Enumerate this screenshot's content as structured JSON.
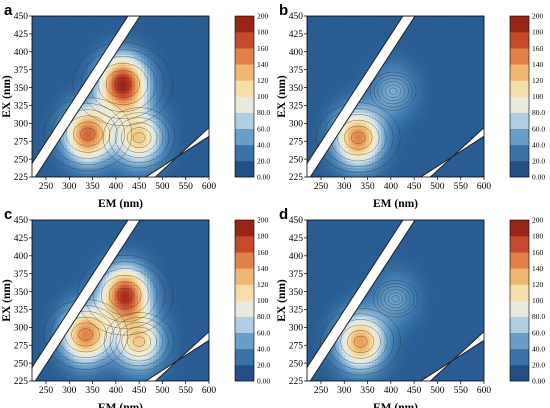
{
  "figure": {
    "panels": [
      "a",
      "b",
      "c",
      "d"
    ]
  },
  "chart_data": [
    {
      "panel": "a",
      "type": "heatmap",
      "xlabel": "EM (nm)",
      "ylabel": "EX (nm)",
      "xlim": [
        220,
        600
      ],
      "ylim": [
        225,
        450
      ],
      "xticks": [
        "250",
        "300",
        "350",
        "400",
        "450",
        "500",
        "550",
        "600"
      ],
      "yticks": [
        "225",
        "250",
        "275",
        "300",
        "325",
        "350",
        "375",
        "400",
        "425",
        "450"
      ],
      "colorbar": {
        "range": [
          0,
          200
        ],
        "labels": [
          "0.00",
          "20.0",
          "40.0",
          "60.0",
          "80.0",
          "100",
          "120",
          "140",
          "160",
          "180",
          "200"
        ]
      },
      "peaks": [
        {
          "em": 415,
          "ex": 355,
          "intensity": 190
        },
        {
          "em": 340,
          "ex": 285,
          "intensity": 160
        },
        {
          "em": 450,
          "ex": 280,
          "intensity": 120
        }
      ],
      "gridlines": false
    },
    {
      "panel": "b",
      "type": "heatmap",
      "xlabel": "EM (nm)",
      "ylabel": "EX (nm)",
      "xlim": [
        220,
        600
      ],
      "ylim": [
        225,
        450
      ],
      "xticks": [
        "250",
        "300",
        "350",
        "400",
        "450",
        "500",
        "550",
        "600"
      ],
      "yticks": [
        "225",
        "250",
        "275",
        "300",
        "325",
        "350",
        "375",
        "400",
        "425",
        "450"
      ],
      "colorbar": {
        "range": [
          0,
          200
        ],
        "labels": [
          "0.00",
          "20.0",
          "40.0",
          "60.0",
          "80.0",
          "100",
          "120",
          "140",
          "160",
          "180",
          "200"
        ]
      },
      "peaks": [
        {
          "em": 330,
          "ex": 280,
          "intensity": 150
        },
        {
          "em": 405,
          "ex": 345,
          "intensity": 55
        }
      ],
      "gridlines": false
    },
    {
      "panel": "c",
      "type": "heatmap",
      "xlabel": "EM (nm)",
      "ylabel": "EX (nm)",
      "xlim": [
        220,
        600
      ],
      "ylim": [
        225,
        450
      ],
      "xticks": [
        "250",
        "300",
        "350",
        "400",
        "450",
        "500",
        "550",
        "600"
      ],
      "yticks": [
        "225",
        "250",
        "275",
        "300",
        "325",
        "350",
        "375",
        "400",
        "425",
        "450"
      ],
      "colorbar": {
        "range": [
          0,
          200
        ],
        "labels": [
          "0.00",
          "20.0",
          "40.0",
          "60.0",
          "80.0",
          "100",
          "120",
          "140",
          "160",
          "180",
          "200"
        ]
      },
      "peaks": [
        {
          "em": 420,
          "ex": 345,
          "intensity": 180
        },
        {
          "em": 335,
          "ex": 290,
          "intensity": 150
        },
        {
          "em": 450,
          "ex": 280,
          "intensity": 115
        }
      ],
      "gridlines": false
    },
    {
      "panel": "d",
      "type": "heatmap",
      "xlabel": "EM (nm)",
      "ylabel": "EX (nm)",
      "xlim": [
        220,
        600
      ],
      "ylim": [
        225,
        450
      ],
      "xticks": [
        "250",
        "300",
        "350",
        "400",
        "450",
        "500",
        "550",
        "600"
      ],
      "yticks": [
        "225",
        "250",
        "275",
        "300",
        "325",
        "350",
        "375",
        "400",
        "425",
        "450"
      ],
      "colorbar": {
        "range": [
          0,
          200
        ],
        "labels": [
          "0.00",
          "20.0",
          "40.0",
          "60.0",
          "80.0",
          "100",
          "120",
          "140",
          "160",
          "180",
          "200"
        ]
      },
      "peaks": [
        {
          "em": 335,
          "ex": 280,
          "intensity": 140
        },
        {
          "em": 410,
          "ex": 340,
          "intensity": 50
        }
      ],
      "gridlines": false
    }
  ],
  "colors": {
    "background_low": "#2a5f95",
    "colormap": [
      "#1e3f73",
      "#2a5f95",
      "#4a86b8",
      "#8ab6d6",
      "#d6e6ef",
      "#f7edc9",
      "#f3cd8a",
      "#eb9f5a",
      "#d6633a",
      "#b4311f",
      "#7c1b10"
    ],
    "scatter_band": "#ffffff",
    "contour_line": "#303030"
  }
}
